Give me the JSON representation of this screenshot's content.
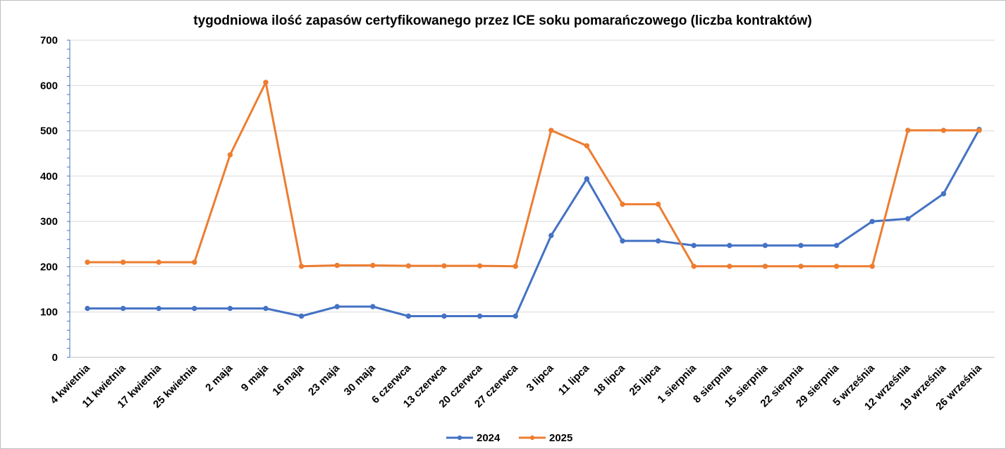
{
  "chart_data": {
    "type": "line",
    "title": "tygodniowa ilość zapasów certyfikowanego przez ICE soku pomarańczowego (liczba kontraktów)",
    "xlabel": "",
    "ylabel": "",
    "ylim": [
      0,
      700
    ],
    "y_ticks": [
      "0",
      "100",
      "200",
      "300",
      "400",
      "500",
      "600",
      "700"
    ],
    "grid": true,
    "legend_position": "bottom",
    "categories": [
      "4 kwietnia",
      "11 kwietnia",
      "17 kwietnia",
      "25 kwietnia",
      "2 maja",
      "9 maja",
      "16 maja",
      "23 maja",
      "30 maja",
      "6 czerwca",
      "13 czerwca",
      "20 czerwca",
      "27 czerwca",
      "3 lipca",
      "11 lipca",
      "18 lipca",
      "25 lipca",
      "1 sierpnia",
      "8 sierpnia",
      "15 sierpnia",
      "22 sierpnia",
      "29 sierpnia",
      "5 września",
      "12 września",
      "19 września",
      "26 września"
    ],
    "series": [
      {
        "name": "2024",
        "color": "#4472C4",
        "values": [
          108,
          108,
          108,
          108,
          108,
          108,
          91,
          112,
          112,
          91,
          91,
          91,
          91,
          269,
          394,
          257,
          257,
          247,
          247,
          247,
          247,
          247,
          300,
          306,
          361,
          503
        ]
      },
      {
        "name": "2025",
        "color": "#ED7D31",
        "values": [
          210,
          210,
          210,
          210,
          447,
          607,
          201,
          203,
          203,
          202,
          202,
          202,
          201,
          501,
          467,
          338,
          338,
          201,
          201,
          201,
          201,
          201,
          201,
          501,
          501,
          501
        ]
      }
    ]
  }
}
